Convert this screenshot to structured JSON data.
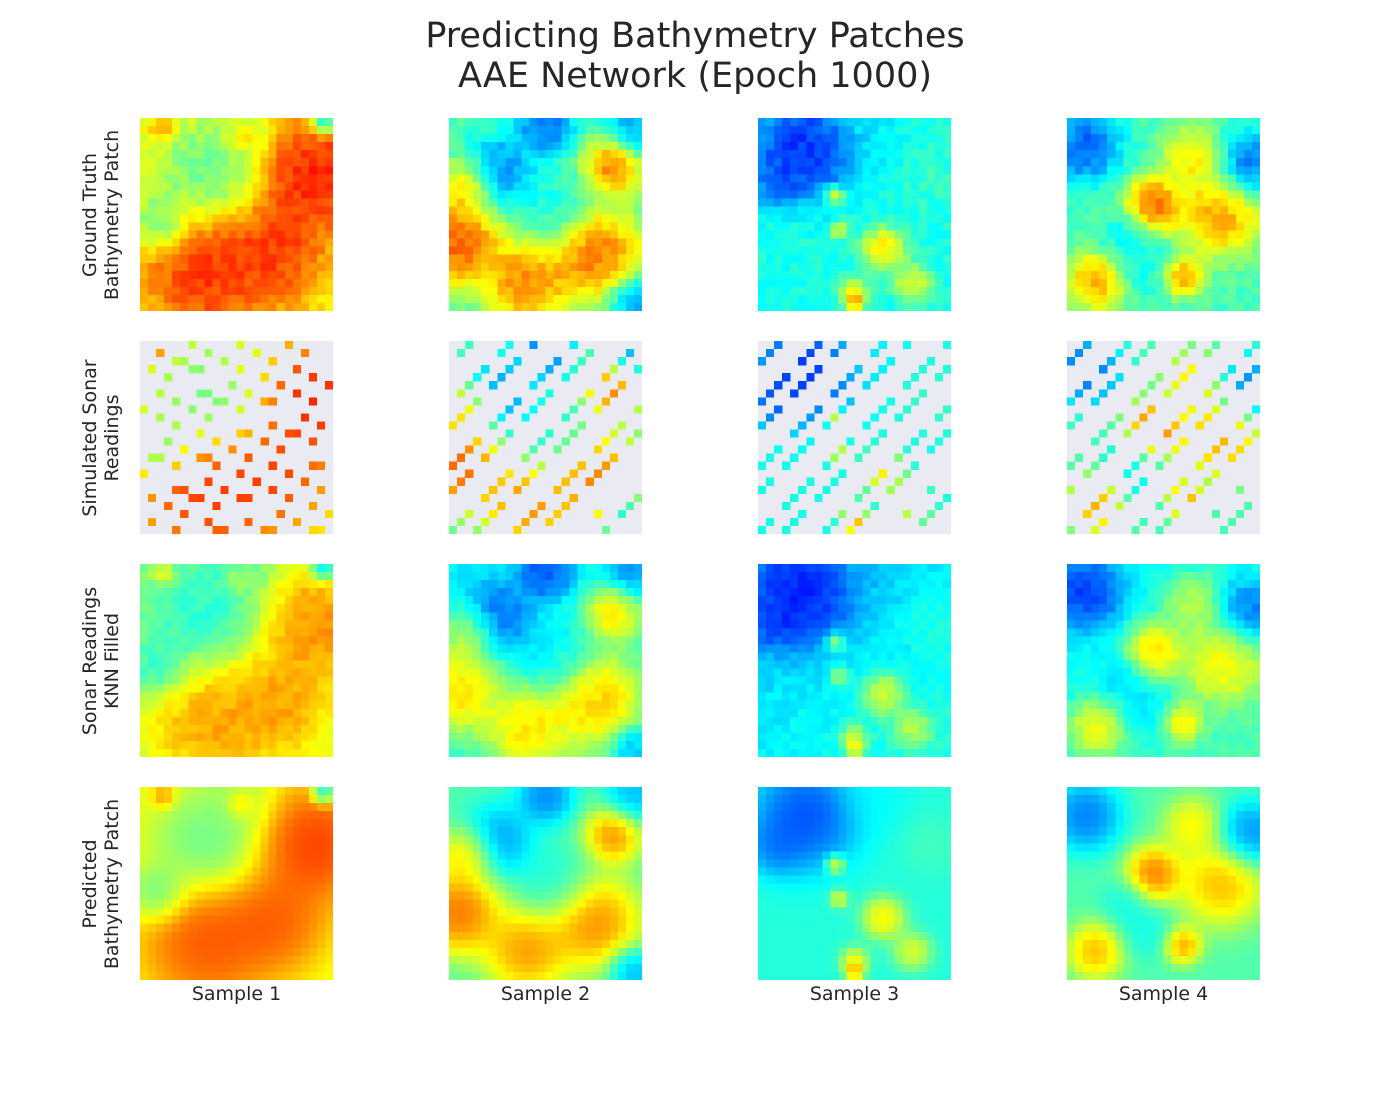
{
  "title_line1": "Predicting Bathymetry Patches",
  "title_line2": "AAE Network (Epoch 1000)",
  "colormap": "jet",
  "sparse_background": "#eaeaf2",
  "chart_data": {
    "type": "heatmap",
    "title": "Predicting Bathymetry Patches\nAAE Network (Epoch 1000)",
    "rows": [
      {
        "label_line1": "Ground Truth",
        "label_line2": "Bathymetry Patch"
      },
      {
        "label_line1": "Simulated Sonar",
        "label_line2": "Readings"
      },
      {
        "label_line1": "Sonar Readings",
        "label_line2": "KNN Filled"
      },
      {
        "label_line1": "Predicted",
        "label_line2": "Bathymetry Patch"
      }
    ],
    "columns": [
      "Sample 1",
      "Sample 2",
      "Sample 3",
      "Sample 4"
    ],
    "grid": false,
    "samples": [
      {
        "base": 0.62,
        "blobs": [
          {
            "x": 0.9,
            "y": 0.3,
            "v": 0.97,
            "r": 0.25
          },
          {
            "x": 0.35,
            "y": 0.8,
            "v": 0.93,
            "r": 0.28
          },
          {
            "x": 0.7,
            "y": 0.7,
            "v": 0.9,
            "r": 0.22
          },
          {
            "x": 0.35,
            "y": 0.3,
            "v": 0.4,
            "r": 0.22
          },
          {
            "x": 0.1,
            "y": 0.55,
            "v": 0.38,
            "r": 0.12
          },
          {
            "x": 0.5,
            "y": 0.07,
            "v": 0.5,
            "r": 0.15
          },
          {
            "x": 0.52,
            "y": 0.09,
            "v": 0.83,
            "r": 0.06
          },
          {
            "x": 0.12,
            "y": 0.05,
            "v": 0.82,
            "r": 0.05
          },
          {
            "x": 0.95,
            "y": 0.03,
            "v": 0.15,
            "r": 0.05
          }
        ]
      },
      {
        "base": 0.45,
        "blobs": [
          {
            "x": 0.25,
            "y": 0.28,
            "v": 0.15,
            "r": 0.15
          },
          {
            "x": 0.5,
            "y": 0.05,
            "v": 0.12,
            "r": 0.12
          },
          {
            "x": 0.95,
            "y": 0.05,
            "v": 0.2,
            "r": 0.12
          },
          {
            "x": 0.05,
            "y": 0.65,
            "v": 0.97,
            "r": 0.18
          },
          {
            "x": 0.1,
            "y": 0.35,
            "v": 0.82,
            "r": 0.12
          },
          {
            "x": 0.85,
            "y": 0.25,
            "v": 0.92,
            "r": 0.12
          },
          {
            "x": 0.75,
            "y": 0.7,
            "v": 0.93,
            "r": 0.2
          },
          {
            "x": 0.4,
            "y": 0.85,
            "v": 0.9,
            "r": 0.18
          },
          {
            "x": 0.55,
            "y": 0.5,
            "v": 0.35,
            "r": 0.16
          },
          {
            "x": 0.95,
            "y": 0.95,
            "v": 0.18,
            "r": 0.1
          }
        ]
      },
      {
        "base": 0.4,
        "blobs": [
          {
            "x": 0.25,
            "y": 0.15,
            "v": 0.05,
            "r": 0.22
          },
          {
            "x": 0.1,
            "y": 0.3,
            "v": 0.15,
            "r": 0.12
          },
          {
            "x": 0.6,
            "y": 0.05,
            "v": 0.35,
            "r": 0.15
          },
          {
            "x": 0.4,
            "y": 0.4,
            "v": 0.75,
            "r": 0.04
          },
          {
            "x": 0.42,
            "y": 0.58,
            "v": 0.7,
            "r": 0.04
          },
          {
            "x": 0.65,
            "y": 0.68,
            "v": 0.78,
            "r": 0.09
          },
          {
            "x": 0.5,
            "y": 0.9,
            "v": 0.72,
            "r": 0.06
          },
          {
            "x": 0.8,
            "y": 0.85,
            "v": 0.7,
            "r": 0.08
          },
          {
            "x": 0.9,
            "y": 0.3,
            "v": 0.45,
            "r": 0.12
          },
          {
            "x": 0.5,
            "y": 0.95,
            "v": 0.9,
            "r": 0.04
          }
        ]
      },
      {
        "base": 0.45,
        "blobs": [
          {
            "x": 0.1,
            "y": 0.15,
            "v": 0.1,
            "r": 0.15
          },
          {
            "x": 0.95,
            "y": 0.25,
            "v": 0.12,
            "r": 0.14
          },
          {
            "x": 0.45,
            "y": 0.45,
            "v": 0.95,
            "r": 0.12
          },
          {
            "x": 0.8,
            "y": 0.5,
            "v": 0.85,
            "r": 0.18
          },
          {
            "x": 0.65,
            "y": 0.2,
            "v": 0.75,
            "r": 0.12
          },
          {
            "x": 0.15,
            "y": 0.85,
            "v": 0.85,
            "r": 0.12
          },
          {
            "x": 0.6,
            "y": 0.82,
            "v": 0.88,
            "r": 0.08
          },
          {
            "x": 0.4,
            "y": 0.75,
            "v": 0.35,
            "r": 0.12
          },
          {
            "x": 0.3,
            "y": 0.6,
            "v": 0.35,
            "r": 0.1
          }
        ]
      }
    ]
  }
}
